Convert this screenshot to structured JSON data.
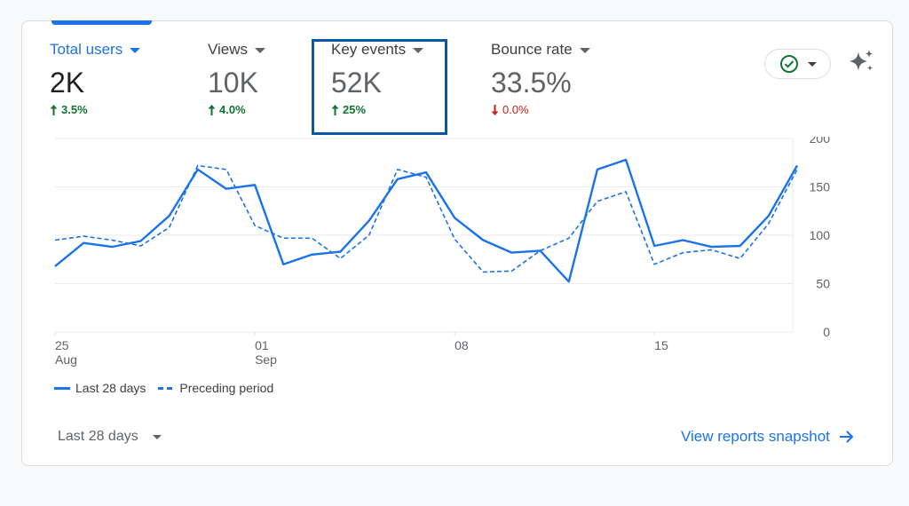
{
  "metrics": [
    {
      "label": "Total users",
      "value": "2K",
      "delta": "3.5%",
      "direction": "up"
    },
    {
      "label": "Views",
      "value": "10K",
      "delta": "4.0%",
      "direction": "up"
    },
    {
      "label": "Key events",
      "value": "52K",
      "delta": "25%",
      "direction": "up"
    },
    {
      "label": "Bounce rate",
      "value": "33.5%",
      "delta": "0.0%",
      "direction": "down"
    }
  ],
  "icons": {
    "status": "check-circle-icon",
    "insights": "sparkle-icon"
  },
  "colors": {
    "accent": "#1a73e8",
    "up": "#137333",
    "down": "#c5221f",
    "highlight": "#0b57a4"
  },
  "chart_data": {
    "type": "line",
    "ylim": [
      0,
      200
    ],
    "y_ticks": [
      "200",
      "150",
      "100",
      "50",
      "0"
    ],
    "x_ticks": [
      {
        "line1": "25",
        "line2": "Aug"
      },
      {
        "line1": "01",
        "line2": "Sep"
      },
      {
        "line1": "08",
        "line2": ""
      },
      {
        "line1": "15",
        "line2": ""
      }
    ],
    "series": [
      {
        "name": "Last 28 days",
        "style": "solid",
        "values": [
          68,
          92,
          88,
          94,
          120,
          168,
          148,
          152,
          70,
          80,
          83,
          115,
          158,
          165,
          118,
          95,
          82,
          84,
          52,
          168,
          178,
          89,
          95,
          88,
          89,
          120,
          172
        ]
      },
      {
        "name": "Preceding period",
        "style": "dashed",
        "values": [
          95,
          99,
          95,
          89,
          108,
          172,
          168,
          110,
          97,
          97,
          76,
          100,
          168,
          160,
          96,
          62,
          63,
          84,
          97,
          135,
          145,
          70,
          82,
          85,
          76,
          112,
          168
        ]
      }
    ]
  },
  "legend": {
    "current": "Last 28 days",
    "previous": "Preceding period"
  },
  "footer": {
    "period": "Last 28 days",
    "snapshot_link": "View reports snapshot"
  }
}
